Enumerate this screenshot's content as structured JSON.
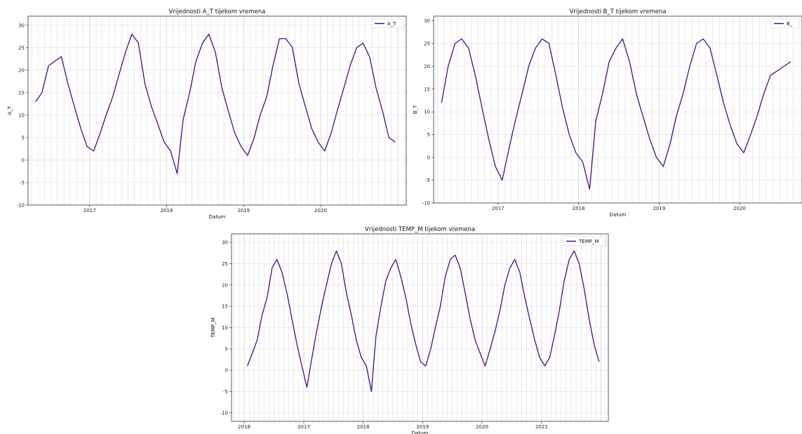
{
  "chart_data": [
    {
      "type": "line",
      "title": "Vrijednosti A_T tijekom vremena",
      "xlabel": "Datum",
      "ylabel": "A_T",
      "x_ticks": [
        "2017",
        "2018",
        "2019",
        "2020"
      ],
      "y_ticks": [
        -10,
        -5,
        0,
        5,
        10,
        15,
        20,
        25,
        30
      ],
      "ylim": [
        -10,
        32
      ],
      "xlim": [
        "2016-03-15",
        "2021-02-10"
      ],
      "grid": true,
      "legend": "top-right",
      "series": [
        {
          "name": "A_T",
          "color": "#4b0a8a",
          "x": [
            "2016-04-20",
            "2016-05-20",
            "2016-06-20",
            "2016-07-20",
            "2016-08-20",
            "2016-09-20",
            "2016-10-20",
            "2016-11-20",
            "2016-12-20",
            "2017-01-20",
            "2017-02-20",
            "2017-03-20",
            "2017-04-20",
            "2017-05-20",
            "2017-06-20",
            "2017-07-20",
            "2017-08-20",
            "2017-09-20",
            "2017-10-20",
            "2017-11-20",
            "2017-12-20",
            "2018-01-20",
            "2018-02-20",
            "2018-03-20",
            "2018-04-20",
            "2018-05-20",
            "2018-06-20",
            "2018-07-20",
            "2018-08-20",
            "2018-09-20",
            "2018-10-20",
            "2018-11-20",
            "2018-12-20",
            "2019-01-20",
            "2019-02-20",
            "2019-03-20",
            "2019-04-20",
            "2019-05-20",
            "2019-06-20",
            "2019-07-20",
            "2019-08-20",
            "2019-09-20",
            "2019-10-20",
            "2019-11-20",
            "2019-12-20",
            "2020-01-20",
            "2020-02-20",
            "2020-03-20",
            "2020-04-20",
            "2020-05-20",
            "2020-06-20",
            "2020-07-20",
            "2020-08-20",
            "2020-09-20",
            "2020-10-20",
            "2020-11-20",
            "2020-12-20"
          ],
          "values": [
            13,
            15,
            21,
            22,
            23,
            17,
            12,
            7,
            3,
            2,
            6,
            10,
            14,
            19,
            24,
            28,
            26,
            17,
            12,
            8,
            4,
            2,
            -3,
            9,
            15,
            22,
            26,
            28,
            24,
            16,
            11,
            6,
            3,
            1,
            5,
            10,
            14,
            21,
            27,
            27,
            25,
            17,
            12,
            7,
            4,
            2,
            6,
            11,
            16,
            21,
            25,
            26,
            23,
            16,
            11,
            5,
            4
          ]
        }
      ]
    },
    {
      "type": "line",
      "title": "Vrijednosti B_T tijekom vremena",
      "xlabel": "Datum",
      "ylabel": "B_T",
      "x_ticks": [
        "2017",
        "2018",
        "2019",
        "2020"
      ],
      "y_ticks": [
        -10,
        -5,
        0,
        5,
        10,
        15,
        20,
        25,
        30
      ],
      "ylim": [
        -10,
        31
      ],
      "xlim": [
        "2016-03-15",
        "2020-10-10"
      ],
      "grid": true,
      "legend": "top-right",
      "series": [
        {
          "name": "B_",
          "color": "#4b0a8a",
          "x": [
            "2016-04-20",
            "2016-05-20",
            "2016-06-20",
            "2016-07-20",
            "2016-08-20",
            "2016-09-20",
            "2016-10-20",
            "2016-11-20",
            "2016-12-20",
            "2017-01-20",
            "2017-02-20",
            "2017-03-20",
            "2017-04-20",
            "2017-05-20",
            "2017-06-20",
            "2017-07-20",
            "2017-08-20",
            "2017-09-20",
            "2017-10-20",
            "2017-11-20",
            "2017-12-20",
            "2018-01-20",
            "2018-02-20",
            "2018-03-20",
            "2018-04-20",
            "2018-05-20",
            "2018-06-20",
            "2018-07-20",
            "2018-08-20",
            "2018-09-20",
            "2018-10-20",
            "2018-11-20",
            "2018-12-20",
            "2019-01-20",
            "2019-02-20",
            "2019-03-20",
            "2019-04-20",
            "2019-05-20",
            "2019-06-20",
            "2019-07-20",
            "2019-08-20",
            "2019-09-20",
            "2019-10-20",
            "2019-11-20",
            "2019-12-20",
            "2020-01-20",
            "2020-02-20",
            "2020-03-20",
            "2020-04-20",
            "2020-05-20",
            "2020-06-20",
            "2020-07-20",
            "2020-08-20"
          ],
          "values": [
            12,
            20,
            25,
            26,
            24,
            18,
            11,
            4,
            -2,
            -5,
            2,
            8,
            14,
            20,
            24,
            26,
            25,
            18,
            11,
            5,
            1,
            -1,
            -7,
            8,
            14,
            21,
            24,
            26,
            21,
            14,
            9,
            4,
            0,
            -2,
            3,
            9,
            14,
            20,
            25,
            26,
            24,
            18,
            12,
            7,
            3,
            1,
            5,
            9,
            14,
            18,
            19,
            20,
            21
          ]
        }
      ]
    },
    {
      "type": "line",
      "title": "Vrijednosti TEMP_M tijekom vremena",
      "xlabel": "Datum",
      "ylabel": "TEMP_M",
      "x_ticks": [
        "2016",
        "2017",
        "2018",
        "2019",
        "2020",
        "2021"
      ],
      "y_ticks": [
        -10,
        -5,
        0,
        5,
        10,
        15,
        20,
        25,
        30
      ],
      "ylim": [
        -12,
        32
      ],
      "xlim": [
        "2015-10-15",
        "2022-02-15"
      ],
      "grid": true,
      "legend": "top-right",
      "series": [
        {
          "name": "TEMP_M",
          "color": "#4b0a8a",
          "x": [
            "2016-01-20",
            "2016-02-20",
            "2016-03-20",
            "2016-04-20",
            "2016-05-20",
            "2016-06-20",
            "2016-07-20",
            "2016-08-20",
            "2016-09-20",
            "2016-10-20",
            "2016-11-20",
            "2016-12-20",
            "2017-01-20",
            "2017-02-20",
            "2017-03-20",
            "2017-04-20",
            "2017-05-20",
            "2017-06-20",
            "2017-07-20",
            "2017-08-20",
            "2017-09-20",
            "2017-10-20",
            "2017-11-20",
            "2017-12-20",
            "2018-01-20",
            "2018-02-20",
            "2018-03-20",
            "2018-04-20",
            "2018-05-20",
            "2018-06-20",
            "2018-07-20",
            "2018-08-20",
            "2018-09-20",
            "2018-10-20",
            "2018-11-20",
            "2018-12-20",
            "2019-01-20",
            "2019-02-20",
            "2019-03-20",
            "2019-04-20",
            "2019-05-20",
            "2019-06-20",
            "2019-07-20",
            "2019-08-20",
            "2019-09-20",
            "2019-10-20",
            "2019-11-20",
            "2019-12-20",
            "2020-01-20",
            "2020-02-20",
            "2020-03-20",
            "2020-04-20",
            "2020-05-20",
            "2020-06-20",
            "2020-07-20",
            "2020-08-20",
            "2020-09-20",
            "2020-10-20",
            "2020-11-20",
            "2020-12-20",
            "2021-01-20",
            "2021-02-20",
            "2021-03-20",
            "2021-04-20",
            "2021-05-20",
            "2021-06-20",
            "2021-07-20",
            "2021-08-20",
            "2021-09-20",
            "2021-10-20",
            "2021-11-20",
            "2021-12-20"
          ],
          "values": [
            1,
            4,
            7,
            13,
            17,
            24,
            26,
            23,
            18,
            12,
            6,
            1,
            -4,
            3,
            9,
            15,
            20,
            25,
            28,
            25,
            18,
            13,
            7,
            3,
            1,
            -5,
            8,
            15,
            21,
            24,
            26,
            22,
            17,
            11,
            6,
            2,
            1,
            5,
            10,
            15,
            22,
            26,
            27,
            24,
            18,
            12,
            7,
            4,
            1,
            5,
            9,
            14,
            20,
            24,
            26,
            23,
            17,
            12,
            7,
            3,
            1,
            3,
            8,
            14,
            21,
            26,
            28,
            25,
            19,
            12,
            6,
            2
          ]
        }
      ]
    }
  ]
}
